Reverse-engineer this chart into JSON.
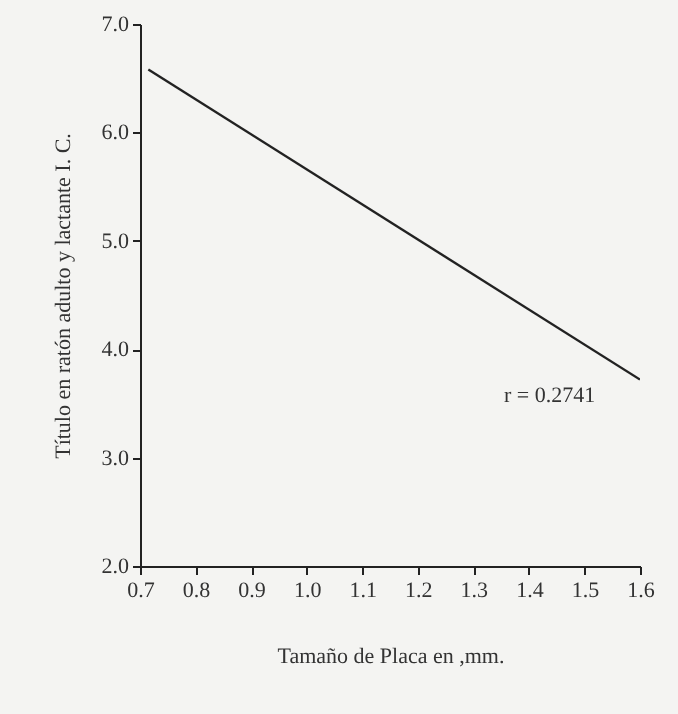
{
  "chart_data": {
    "type": "line",
    "xlabel": "Tamaño de Placa en ,mm.",
    "ylabel": "Título en ratón adulto y lactante I. C.",
    "x": [
      0.715,
      1.6
    ],
    "series": [
      {
        "color": "#222222",
        "values": [
          6.58,
          3.72
        ]
      }
    ],
    "xlim": [
      0.7,
      1.6
    ],
    "xticks": [
      0.7,
      0.8,
      0.9,
      {
        "value": 1,
        "label": "1.0"
      },
      1.1,
      1.2,
      1.3,
      1.4,
      1.5,
      1.6
    ],
    "ylim": [
      2,
      7
    ],
    "yticks": [
      {
        "value": 2,
        "label": "2.0"
      },
      {
        "value": 3,
        "label": "3.0"
      },
      {
        "value": 4,
        "label": "4.0"
      },
      {
        "value": 5,
        "label": "5.0"
      },
      {
        "value": 6,
        "label": "6.0"
      },
      {
        "value": 7,
        "label": "7.0"
      }
    ],
    "annotations": [
      "r = 0.2741"
    ],
    "grid": false
  }
}
